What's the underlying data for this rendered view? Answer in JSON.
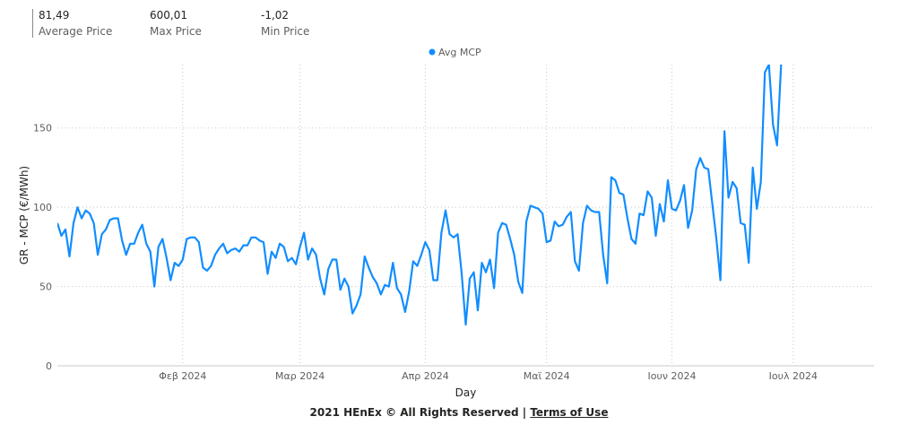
{
  "kpis": [
    {
      "value": "81,49",
      "label": "Average Price"
    },
    {
      "value": "600,01",
      "label": "Max Price"
    },
    {
      "value": "-1,02",
      "label": "Min Price"
    }
  ],
  "footer": {
    "text": "2021 HEnEx © All Rights Reserved | ",
    "link": "Terms of Use"
  },
  "colors": {
    "series": "#118dff",
    "grid": "#c8c8c8"
  },
  "chart_data": {
    "type": "line",
    "xlabel": "Day",
    "ylabel": "GR - MCP (€/MWh)",
    "ylim": [
      0,
      190
    ],
    "yticks": [
      0,
      50,
      100,
      150
    ],
    "x_start": "2024-01-01",
    "xlim": [
      "2024-01-01",
      "2024-07-21"
    ],
    "xticks": [
      {
        "date": "2024-02-01",
        "label": "Φεβ 2024"
      },
      {
        "date": "2024-03-01",
        "label": "Μαρ 2024"
      },
      {
        "date": "2024-04-01",
        "label": "Απρ 2024"
      },
      {
        "date": "2024-05-01",
        "label": "Μαϊ 2024"
      },
      {
        "date": "2024-06-01",
        "label": "Ιουν 2024"
      },
      {
        "date": "2024-07-01",
        "label": "Ιουλ 2024"
      }
    ],
    "grid": true,
    "legend": "top-center",
    "series": [
      {
        "name": "Avg MCP",
        "values": [
          90,
          82,
          86,
          69,
          90,
          100,
          93,
          98,
          96,
          90,
          70,
          83,
          86,
          92,
          93,
          93,
          79,
          70,
          77,
          77,
          84,
          89,
          77,
          72,
          50,
          75,
          80,
          68,
          54,
          65,
          63,
          67,
          80,
          81,
          81,
          78,
          62,
          60,
          63,
          70,
          74,
          77,
          71,
          73,
          74,
          72,
          76,
          76,
          81,
          81,
          79,
          78,
          58,
          72,
          68,
          77,
          75,
          66,
          68,
          64,
          75,
          84,
          67,
          74,
          70,
          55,
          45,
          61,
          67,
          67,
          48,
          55,
          50,
          33,
          38,
          45,
          69,
          62,
          56,
          52,
          45,
          51,
          50,
          65,
          49,
          45,
          34,
          47,
          66,
          63,
          70,
          78,
          73,
          54,
          54,
          84,
          98,
          83,
          81,
          83,
          58,
          26,
          55,
          59,
          35,
          65,
          59,
          67,
          49,
          84,
          90,
          89,
          80,
          70,
          53,
          46,
          91,
          101,
          100,
          99,
          96,
          78,
          79,
          91,
          88,
          89,
          94,
          97,
          66,
          60,
          90,
          101,
          98,
          97,
          97,
          70,
          52,
          119,
          117,
          109,
          108,
          93,
          80,
          77,
          96,
          95,
          110,
          106,
          82,
          102,
          91,
          117,
          99,
          98,
          104,
          114,
          87,
          98,
          124,
          131,
          125,
          124,
          102,
          80,
          54,
          148,
          106,
          116,
          112,
          90,
          89,
          65,
          125,
          99,
          116,
          185,
          190,
          152,
          139,
          190
        ]
      }
    ]
  }
}
